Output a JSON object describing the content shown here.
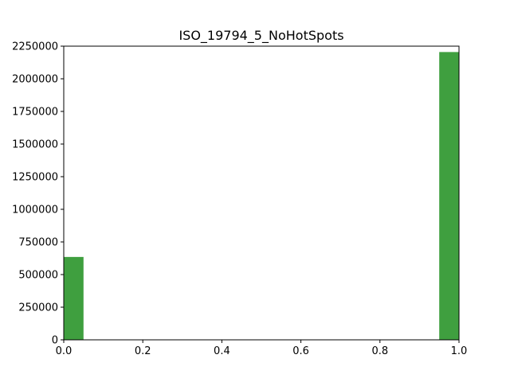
{
  "chart_data": {
    "type": "bar",
    "title": "ISO_19794_5_NoHotSpots",
    "xlabel": "",
    "ylabel": "",
    "xlim": [
      0.0,
      1.0
    ],
    "ylim": [
      0,
      2250000
    ],
    "bin_width": 0.05,
    "bins": [
      {
        "x0": 0.0,
        "x1": 0.05,
        "value": 635000
      },
      {
        "x0": 0.95,
        "x1": 1.0,
        "value": 2205000
      }
    ],
    "xticks": [
      0.0,
      0.2,
      0.4,
      0.6,
      0.8,
      1.0
    ],
    "xtick_labels": [
      "0.0",
      "0.2",
      "0.4",
      "0.6",
      "0.8",
      "1.0"
    ],
    "yticks": [
      0,
      250000,
      500000,
      750000,
      1000000,
      1250000,
      1500000,
      1750000,
      2000000,
      2250000
    ],
    "ytick_labels": [
      "0",
      "250000",
      "500000",
      "750000",
      "1000000",
      "1250000",
      "1500000",
      "1750000",
      "2000000",
      "2250000"
    ],
    "bar_color": "#3f9f3f",
    "grid": false,
    "legend": "none"
  }
}
